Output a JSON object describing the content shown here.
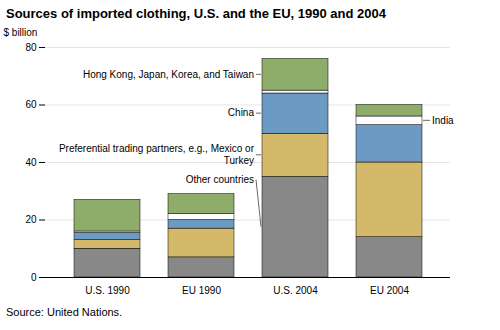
{
  "chart_data": {
    "type": "bar",
    "title": "Sources of imported clothing, U.S. and the EU, 1990 and 2004",
    "ylabel": "$ billion",
    "categories": [
      "U.S. 1990",
      "EU 1990",
      "U.S. 2004",
      "EU 2004"
    ],
    "series": [
      {
        "name": "Other countries",
        "color": "#888888",
        "values": [
          10,
          7,
          35,
          14
        ]
      },
      {
        "name": "Preferential trading partners, e.g., Mexico or Turkey",
        "color": "#d4b96a",
        "values": [
          3,
          10,
          15,
          26
        ]
      },
      {
        "name": "China",
        "color": "#6b9bc3",
        "values": [
          2.5,
          3,
          14,
          13
        ]
      },
      {
        "name": "India",
        "color": "#ffffff",
        "values": [
          0.5,
          2,
          1,
          3
        ]
      },
      {
        "name": "Hong Kong, Japan, Korea, and Taiwan",
        "color": "#8fad6a",
        "values": [
          11,
          7,
          11,
          4
        ]
      }
    ],
    "stacked": true,
    "ylim": [
      0,
      80
    ],
    "yticks": [
      0,
      20,
      40,
      60,
      80
    ],
    "grid": true,
    "annotations": [
      "Source: United Nations."
    ]
  }
}
